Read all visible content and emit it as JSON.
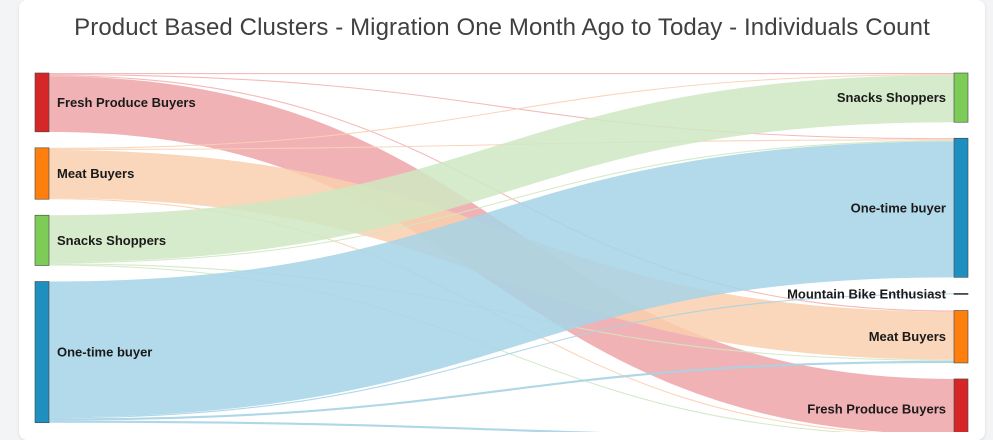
{
  "chart_data": {
    "type": "sankey",
    "title": "Product Based Clusters - Migration One Month Ago to Today - Individuals Count",
    "nodes_left": [
      {
        "id": "L_fresh",
        "label": "Fresh Produce Buyers",
        "color": "#d62728"
      },
      {
        "id": "L_meat",
        "label": "Meat Buyers",
        "color": "#ff7f0e"
      },
      {
        "id": "L_snacks",
        "label": "Snacks Shoppers",
        "color": "#7ccc57"
      },
      {
        "id": "L_onetime",
        "label": "One-time buyer",
        "color": "#1f8fbf"
      }
    ],
    "nodes_right": [
      {
        "id": "R_snacks",
        "label": "Snacks Shoppers",
        "color": "#7ccc57"
      },
      {
        "id": "R_onetime",
        "label": "One-time buyer",
        "color": "#1f8fbf"
      },
      {
        "id": "R_mtb",
        "label": "Mountain Bike Enthusiast",
        "color": "#555555"
      },
      {
        "id": "R_meat",
        "label": "Meat Buyers",
        "color": "#ff7f0e"
      },
      {
        "id": "R_fresh",
        "label": "Fresh Produce Buyers",
        "color": "#d62728"
      }
    ],
    "links": [
      {
        "source": "L_fresh",
        "target": "R_snacks",
        "value": 1,
        "color": "#f2b2b2"
      },
      {
        "source": "L_fresh",
        "target": "R_onetime",
        "value": 1,
        "color": "#f2b2b2"
      },
      {
        "source": "L_fresh",
        "target": "R_meat",
        "value": 1,
        "color": "#f2b2b2"
      },
      {
        "source": "L_fresh",
        "target": "R_fresh",
        "value": 52,
        "color": "#eea5a8"
      },
      {
        "source": "L_meat",
        "target": "R_snacks",
        "value": 1,
        "color": "#f9d0b3"
      },
      {
        "source": "L_meat",
        "target": "R_onetime",
        "value": 1,
        "color": "#f9d0b3"
      },
      {
        "source": "L_meat",
        "target": "R_meat",
        "value": 45,
        "color": "#f9cfae"
      },
      {
        "source": "L_meat",
        "target": "R_fresh",
        "value": 1,
        "color": "#f9d0b3"
      },
      {
        "source": "L_snacks",
        "target": "R_snacks",
        "value": 44,
        "color": "#cfe8c2"
      },
      {
        "source": "L_snacks",
        "target": "R_onetime",
        "value": 1,
        "color": "#cfe8c2"
      },
      {
        "source": "L_snacks",
        "target": "R_meat",
        "value": 1,
        "color": "#cfe8c2"
      },
      {
        "source": "L_snacks",
        "target": "R_fresh",
        "value": 1,
        "color": "#cfe8c2"
      },
      {
        "source": "L_onetime",
        "target": "R_onetime",
        "value": 127,
        "color": "#a6d3e6"
      },
      {
        "source": "L_onetime",
        "target": "R_mtb",
        "value": 1,
        "color": "#a6d3e6"
      },
      {
        "source": "L_onetime",
        "target": "R_meat",
        "value": 2,
        "color": "#a6d3e6"
      },
      {
        "source": "L_onetime",
        "target": "R_fresh",
        "value": 2,
        "color": "#a6d3e6"
      }
    ]
  }
}
